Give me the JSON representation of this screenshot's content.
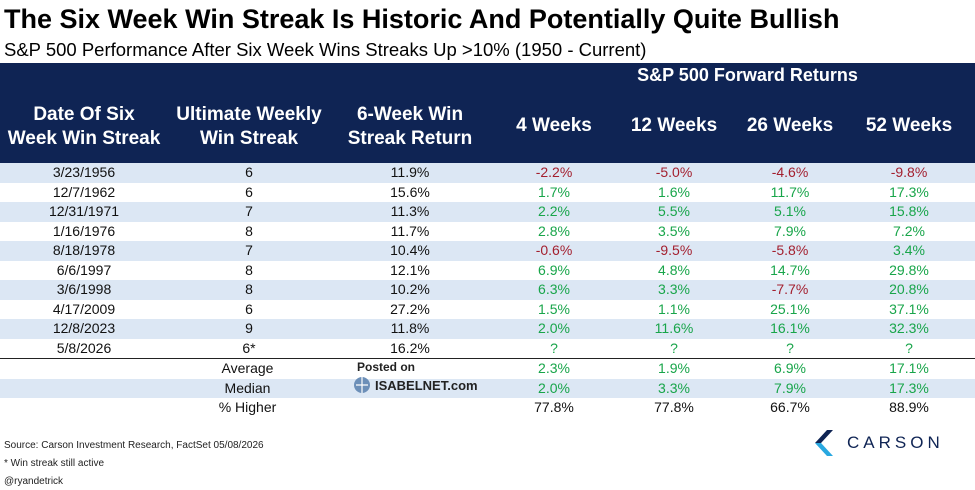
{
  "title": "The Six Week Win Streak Is Historic And Potentially Quite Bullish",
  "subtitle": "S&P 500 Performance After Six Week Wins Streaks Up >10% (1950 - Current)",
  "header": {
    "forward_returns": "S&P 500 Forward Returns",
    "col_date_l1": "Date Of Six",
    "col_date_l2": "Week Win Streak",
    "col_streak_l1": "Ultimate Weekly",
    "col_streak_l2": "Win Streak",
    "col_return_l1": "6-Week Win",
    "col_return_l2": "Streak Return",
    "col_4w": "4 Weeks",
    "col_12w": "12 Weeks",
    "col_26w": "26 Weeks",
    "col_52w": "52 Weeks"
  },
  "rows": [
    {
      "date": "3/23/1956",
      "streak": "6",
      "ret": "11.9%",
      "w4": "-2.2%",
      "w12": "-5.0%",
      "w26": "-4.6%",
      "w52": "-9.8%"
    },
    {
      "date": "12/7/1962",
      "streak": "6",
      "ret": "15.6%",
      "w4": "1.7%",
      "w12": "1.6%",
      "w26": "11.7%",
      "w52": "17.3%"
    },
    {
      "date": "12/31/1971",
      "streak": "7",
      "ret": "11.3%",
      "w4": "2.2%",
      "w12": "5.5%",
      "w26": "5.1%",
      "w52": "15.8%"
    },
    {
      "date": "1/16/1976",
      "streak": "8",
      "ret": "11.7%",
      "w4": "2.8%",
      "w12": "3.5%",
      "w26": "7.9%",
      "w52": "7.2%"
    },
    {
      "date": "8/18/1978",
      "streak": "7",
      "ret": "10.4%",
      "w4": "-0.6%",
      "w12": "-9.5%",
      "w26": "-5.8%",
      "w52": "3.4%"
    },
    {
      "date": "6/6/1997",
      "streak": "8",
      "ret": "12.1%",
      "w4": "6.9%",
      "w12": "4.8%",
      "w26": "14.7%",
      "w52": "29.8%"
    },
    {
      "date": "3/6/1998",
      "streak": "8",
      "ret": "10.2%",
      "w4": "6.3%",
      "w12": "3.3%",
      "w26": "-7.7%",
      "w52": "20.8%"
    },
    {
      "date": "4/17/2009",
      "streak": "6",
      "ret": "27.2%",
      "w4": "1.5%",
      "w12": "1.1%",
      "w26": "25.1%",
      "w52": "37.1%"
    },
    {
      "date": "12/8/2023",
      "streak": "9",
      "ret": "11.8%",
      "w4": "2.0%",
      "w12": "11.6%",
      "w26": "16.1%",
      "w52": "32.3%"
    },
    {
      "date": "5/8/2026",
      "streak": "6*",
      "ret": "16.2%",
      "w4": "?",
      "w12": "?",
      "w26": "?",
      "w52": "?"
    }
  ],
  "stats": [
    {
      "label": "Average",
      "w4": "2.3%",
      "w12": "1.9%",
      "w26": "6.9%",
      "w52": "17.1%"
    },
    {
      "label": "Median",
      "w4": "2.0%",
      "w12": "3.3%",
      "w26": "7.9%",
      "w52": "17.3%"
    },
    {
      "label": "% Higher",
      "w4": "77.8%",
      "w12": "77.8%",
      "w26": "66.7%",
      "w52": "88.9%"
    }
  ],
  "watermark": {
    "posted": "Posted on",
    "site": "ISABELNET.com"
  },
  "footer": {
    "source": "Source: Carson Investment Research, FactSet 05/08/2026",
    "note": "* Win streak still active",
    "handle": "@ryandetrick"
  },
  "brand": {
    "name": "CARSON"
  },
  "colors": {
    "header_bg": "#0f2454",
    "row_shade": "#dce7f4",
    "positive": "#18a54a",
    "negative": "#a31f2e"
  }
}
